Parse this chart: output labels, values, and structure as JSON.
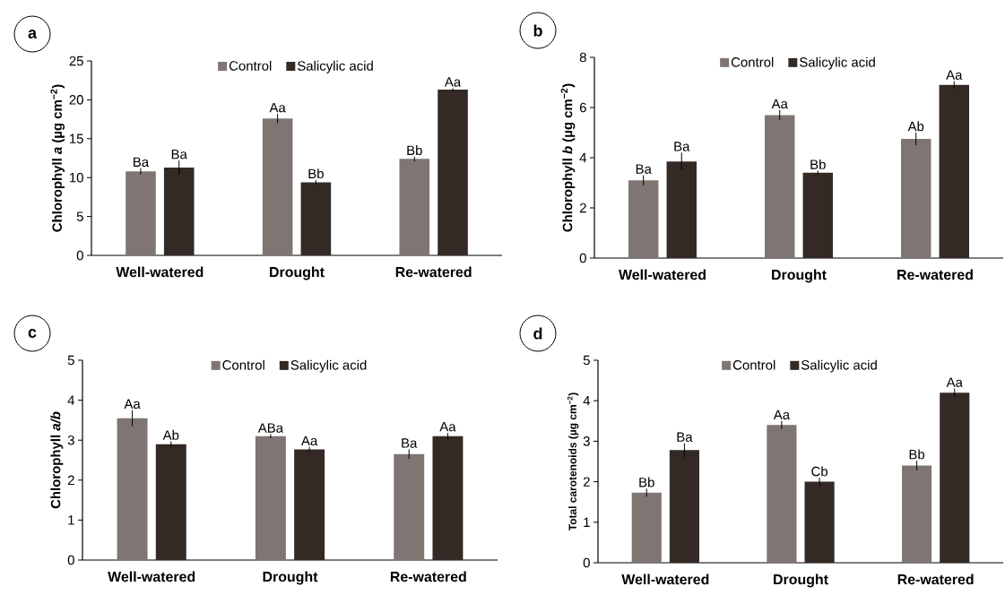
{
  "chart_data": [
    {
      "type": "bar",
      "title": "a",
      "ylabel": "Chlorophyll *a* (µg cm$^{−2}$)",
      "categories": [
        "Well-watered",
        "Drought",
        "Re-watered"
      ],
      "ylim": [
        0,
        25
      ],
      "yticks": [
        0,
        5,
        10,
        15,
        20,
        25
      ],
      "legend": "top",
      "series": [
        {
          "name": "Control",
          "color": "#7f7572",
          "values": [
            10.8,
            17.6,
            12.4
          ],
          "errors": [
            0.4,
            0.6,
            0.3
          ],
          "value_labels": [
            "Ba",
            "Aa",
            "Bb"
          ]
        },
        {
          "name": "Salicylic acid",
          "color": "#332a26",
          "values": [
            11.3,
            9.4,
            21.3
          ],
          "errors": [
            0.9,
            0.3,
            0.2
          ],
          "value_labels": [
            "Ba",
            "Bb",
            "Aa"
          ]
        }
      ]
    },
    {
      "type": "bar",
      "title": "b",
      "ylabel": "Chlorophyll *b* (µg cm$^{−2}$)",
      "categories": [
        "Well-watered",
        "Drought",
        "Re-watered"
      ],
      "ylim": [
        0,
        8
      ],
      "yticks": [
        0,
        2,
        4,
        6,
        8
      ],
      "legend": "top",
      "series": [
        {
          "name": "Control",
          "color": "#7f7572",
          "values": [
            3.1,
            5.7,
            4.75
          ],
          "errors": [
            0.2,
            0.2,
            0.25
          ],
          "value_labels": [
            "Ba",
            "Aa",
            "Ab"
          ]
        },
        {
          "name": "Salicylic acid",
          "color": "#332a26",
          "values": [
            3.85,
            3.4,
            6.9
          ],
          "errors": [
            0.35,
            0.08,
            0.15
          ],
          "value_labels": [
            "Ba",
            "Bb",
            "Aa"
          ]
        }
      ]
    },
    {
      "type": "bar",
      "title": "c",
      "ylabel": "Chlorophyll *a/b*",
      "categories": [
        "Well-watered",
        "Drought",
        "Re-watered"
      ],
      "ylim": [
        0,
        5
      ],
      "yticks": [
        0,
        1,
        2,
        3,
        4,
        5
      ],
      "legend": "top",
      "series": [
        {
          "name": "Control",
          "color": "#7f7572",
          "values": [
            3.55,
            3.1,
            2.65
          ],
          "errors": [
            0.2,
            0.05,
            0.12
          ],
          "value_labels": [
            "Aa",
            "ABa",
            "Ba"
          ]
        },
        {
          "name": "Salicylic acid",
          "color": "#332a26",
          "values": [
            2.9,
            2.77,
            3.1
          ],
          "errors": [
            0.07,
            0.06,
            0.08
          ],
          "value_labels": [
            "Ab",
            "Aa",
            "Aa"
          ]
        }
      ]
    },
    {
      "type": "bar",
      "title": "d",
      "ylabel": "Total carotenoids (µg cm$^{−2}$)",
      "categories": [
        "Well-watered",
        "Drought",
        "Re-watered"
      ],
      "ylim": [
        0,
        5
      ],
      "yticks": [
        0,
        1,
        2,
        3,
        4,
        5
      ],
      "legend": "top",
      "series": [
        {
          "name": "Control",
          "color": "#7f7572",
          "values": [
            1.73,
            3.4,
            2.4
          ],
          "errors": [
            0.1,
            0.1,
            0.12
          ],
          "value_labels": [
            "Bb",
            "Aa",
            "Bb"
          ]
        },
        {
          "name": "Salicylic acid",
          "color": "#332a26",
          "values": [
            2.78,
            2.0,
            4.2
          ],
          "errors": [
            0.17,
            0.1,
            0.1
          ],
          "value_labels": [
            "Ba",
            "Cb",
            "Aa"
          ]
        }
      ]
    }
  ]
}
